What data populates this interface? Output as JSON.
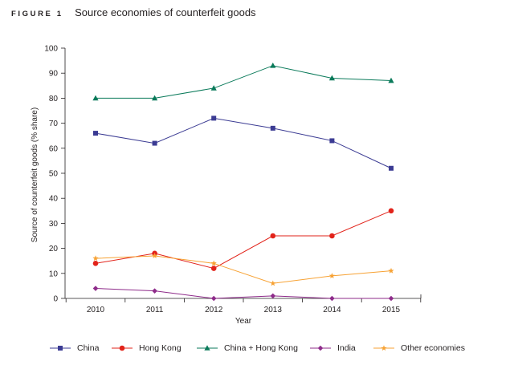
{
  "figure": {
    "label": "FIGURE 1",
    "title": "Source economies of counterfeit goods"
  },
  "chart_data": {
    "type": "line",
    "x": [
      "2010",
      "2011",
      "2012",
      "2013",
      "2014",
      "2015"
    ],
    "xlabel": "Year",
    "ylabel": "Source of counterfeit goods (% share)",
    "ylim": [
      0,
      100
    ],
    "yticks": [
      0,
      10,
      20,
      30,
      40,
      50,
      60,
      70,
      80,
      90,
      100
    ],
    "grid": false,
    "legend_position": "bottom",
    "series": [
      {
        "name": "China",
        "color": "#3b3b93",
        "marker": "square",
        "values": [
          66,
          62,
          72,
          68,
          63,
          52
        ]
      },
      {
        "name": "Hong Kong",
        "color": "#e2231a",
        "marker": "circle",
        "values": [
          14,
          18,
          12,
          25,
          25,
          35
        ]
      },
      {
        "name": "China + Hong Kong",
        "color": "#0a7a5a",
        "marker": "triangle",
        "values": [
          80,
          80,
          84,
          93,
          88,
          87
        ]
      },
      {
        "name": "India",
        "color": "#8e2b8a",
        "marker": "diamond",
        "values": [
          4,
          3,
          0,
          1,
          0,
          0
        ]
      },
      {
        "name": "Other economies",
        "color": "#f7a234",
        "marker": "star",
        "values": [
          16,
          17,
          14,
          6,
          9,
          11
        ]
      }
    ]
  }
}
